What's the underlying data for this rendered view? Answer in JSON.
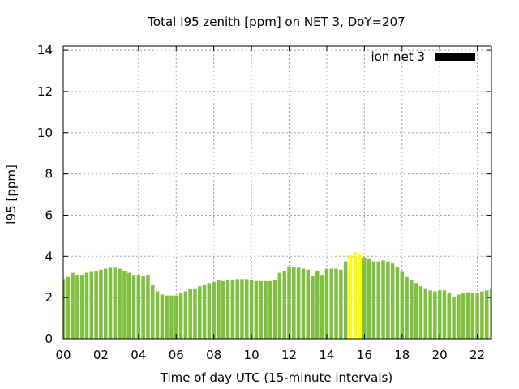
{
  "chart_data": {
    "type": "bar",
    "title": "Total I95 zenith [ppm] on NET 3, DoY=207",
    "xlabel": "Time of day UTC (15-minute intervals)",
    "ylabel": "I95 [ppm]",
    "ylim": [
      0,
      14.2
    ],
    "yticks": [
      0,
      2,
      4,
      6,
      8,
      10,
      12,
      14
    ],
    "xlim": [
      0,
      22.75
    ],
    "xtick_values": [
      0,
      2,
      4,
      6,
      8,
      10,
      12,
      14,
      16,
      18,
      20,
      22
    ],
    "xtick_labels": [
      "00",
      "02",
      "04",
      "06",
      "08",
      "10",
      "12",
      "14",
      "16",
      "18",
      "20",
      "22"
    ],
    "bar_interval_hours": 0.25,
    "grid": true,
    "legend_position": "top-right",
    "series": [
      {
        "name": "ion net 3",
        "legend_color": "#000000",
        "color": "#80c040",
        "highlight_color": "#ffff00",
        "highlight_range_hours": [
          15.25,
          15.75
        ],
        "x_start_hours": 0,
        "values": [
          2.9,
          3.0,
          3.2,
          3.1,
          3.1,
          3.2,
          3.25,
          3.3,
          3.35,
          3.4,
          3.45,
          3.45,
          3.4,
          3.3,
          3.2,
          3.1,
          3.1,
          3.05,
          3.1,
          2.6,
          2.3,
          2.15,
          2.1,
          2.1,
          2.1,
          2.2,
          2.3,
          2.4,
          2.45,
          2.55,
          2.6,
          2.7,
          2.75,
          2.85,
          2.8,
          2.85,
          2.85,
          2.9,
          2.9,
          2.9,
          2.85,
          2.8,
          2.8,
          2.8,
          2.8,
          2.85,
          3.2,
          3.3,
          3.5,
          3.5,
          3.45,
          3.4,
          3.35,
          3.05,
          3.3,
          3.1,
          3.4,
          3.4,
          3.4,
          3.35,
          3.75,
          4.05,
          4.2,
          4.1,
          3.95,
          3.9,
          3.75,
          3.75,
          3.8,
          3.75,
          3.65,
          3.5,
          3.25,
          3.0,
          2.85,
          2.7,
          2.55,
          2.45,
          2.35,
          2.3,
          2.35,
          2.35,
          2.2,
          2.05,
          2.15,
          2.2,
          2.25,
          2.2,
          2.2,
          2.3,
          2.35,
          2.45,
          2.6
        ]
      }
    ]
  }
}
